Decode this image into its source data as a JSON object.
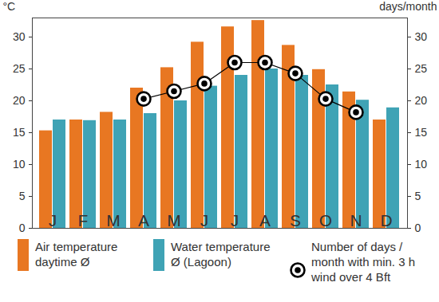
{
  "chart_data": {
    "type": "bar",
    "categories": [
      "J",
      "F",
      "M",
      "A",
      "M",
      "J",
      "J",
      "A",
      "S",
      "O",
      "N",
      "D"
    ],
    "series": [
      {
        "name": "Air temperature daytime Ø",
        "type": "bar",
        "color": "#e87722",
        "values": [
          15.3,
          17,
          18.2,
          22,
          25.2,
          29.2,
          31.6,
          32.6,
          28.7,
          24.9,
          21.4,
          17
        ]
      },
      {
        "name": "Water temperature Ø (Lagoon)",
        "type": "bar",
        "color": "#3fa3b5",
        "values": [
          17,
          16.9,
          17,
          18,
          20,
          22.3,
          24,
          25,
          24,
          22.5,
          20.1,
          18.9
        ]
      },
      {
        "name": "Number of days / month with min. 3 h wind over 4 Bft",
        "type": "line",
        "axis": "y2",
        "color": "#000000",
        "marker": "circle",
        "values": [
          null,
          null,
          null,
          20.3,
          21.5,
          22.7,
          26,
          26,
          24.3,
          20.3,
          18.2,
          null
        ]
      }
    ],
    "y_label": "°C",
    "y2_label": "days/month",
    "ylim": [
      0,
      33
    ],
    "yticks": [
      0,
      5,
      10,
      15,
      20,
      25,
      30
    ],
    "y2lim": [
      0,
      33
    ],
    "y2ticks": [
      0,
      5,
      10,
      15,
      20,
      25,
      30
    ],
    "grid": false
  }
}
